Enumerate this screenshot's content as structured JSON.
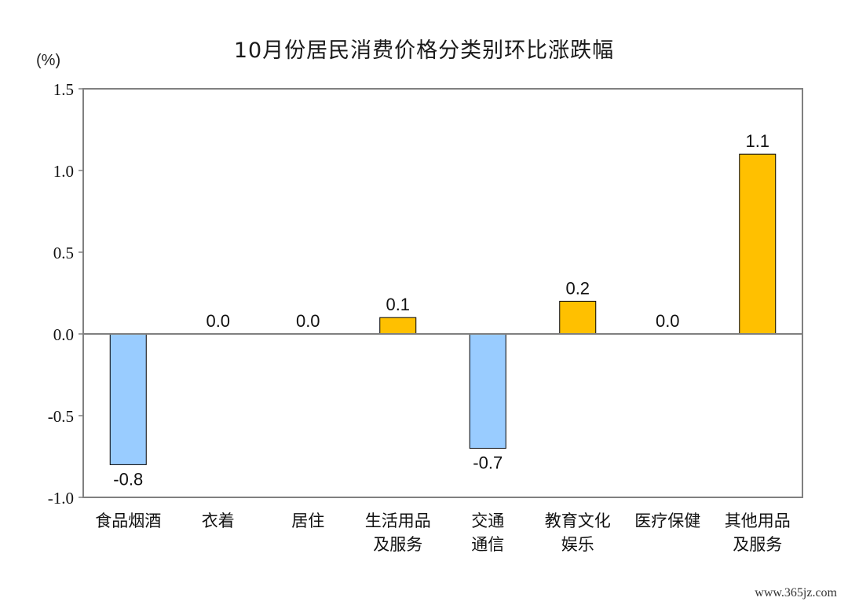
{
  "chart_data": {
    "type": "bar",
    "title": "10月份居民消费价格分类别环比涨跌幅",
    "unit_label": "(%)",
    "categories": [
      [
        "食品烟酒"
      ],
      [
        "衣着"
      ],
      [
        "居住"
      ],
      [
        "生活用品",
        "及服务"
      ],
      [
        "交通",
        "通信"
      ],
      [
        "教育文化",
        "娱乐"
      ],
      [
        "医疗保健"
      ],
      [
        "其他用品",
        "及服务"
      ]
    ],
    "values": [
      -0.8,
      0.0,
      0.0,
      0.1,
      -0.7,
      0.2,
      0.0,
      1.1
    ],
    "value_labels": [
      "-0.8",
      "0.0",
      "0.0",
      "0.1",
      "-0.7",
      "0.2",
      "0.0",
      "1.1"
    ],
    "ylim": [
      -1.0,
      1.5
    ],
    "yticks": [
      1.5,
      1.0,
      0.5,
      0.0,
      -0.5,
      -1.0
    ],
    "ytick_labels": [
      "1.5",
      "1.0",
      "0.5",
      "0.0",
      "-0.5",
      "-1.0"
    ],
    "xlabel": "",
    "ylabel": "",
    "grid": false,
    "legend": "none",
    "colors": {
      "positive": "#FFC000",
      "negative": "#99CCFF",
      "bar_border": "#000000",
      "frame": "#808080"
    }
  },
  "watermark": "www.365jz.com"
}
